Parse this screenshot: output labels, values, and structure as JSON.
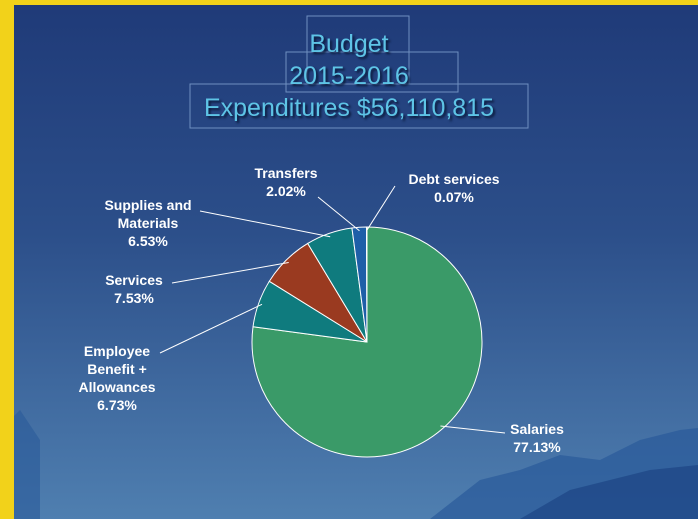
{
  "title": [
    "Budget",
    "2015-2016",
    "Expenditures $56,110,815"
  ],
  "chart_data": {
    "type": "pie",
    "categories": [
      "Salaries",
      "Employee Benefit + Allowances",
      "Services",
      "Supplies and Materials",
      "Transfers",
      "Debt services"
    ],
    "values": [
      77.13,
      6.73,
      7.53,
      6.53,
      2.02,
      0.07
    ],
    "value_labels": [
      "77.13%",
      "6.73%",
      "7.53%",
      "6.53%",
      "2.02%",
      "0.07%"
    ],
    "colors": [
      "#3a9a68",
      "#0f7b7e",
      "#9a3a20",
      "#0f7b7e",
      "#1e5fa8",
      "#dde4f0"
    ]
  }
}
